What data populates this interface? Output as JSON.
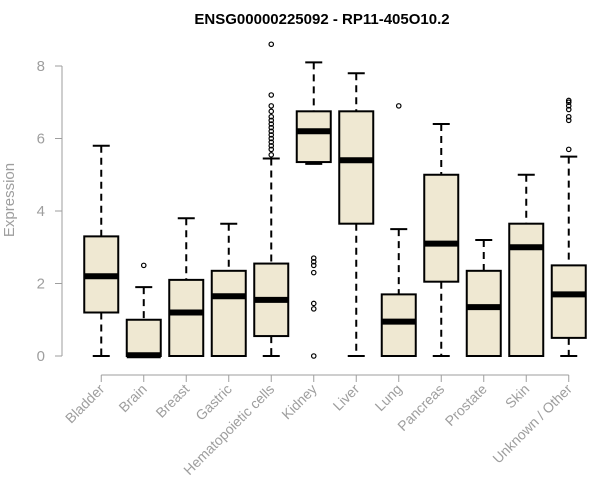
{
  "chart_data": {
    "type": "box",
    "title": "ENSG00000225092 - RP11-405O10.2",
    "ylabel": "Expression",
    "xlabel": "",
    "ylim": [
      0,
      8
    ],
    "yticks": [
      0,
      2,
      4,
      6,
      8
    ],
    "grid": false,
    "legend": "none",
    "box_fill": "#efe8d2",
    "box_stroke": "#000000",
    "axis_color": "#9e9e9e",
    "categories": [
      "Bladder",
      "Brain",
      "Breast",
      "Gastric",
      "Hematopoietic cells",
      "Kidney",
      "Liver",
      "Lung",
      "Pancreas",
      "Prostate",
      "Skin",
      "Unknown / Other"
    ],
    "boxes": [
      {
        "category": "Bladder",
        "whisker_low": 0,
        "q1": 1.2,
        "median": 2.2,
        "q3": 3.3,
        "whisker_high": 5.8,
        "outliers": []
      },
      {
        "category": "Brain",
        "whisker_low": 0,
        "q1": 0,
        "median": 0.02,
        "q3": 1.0,
        "whisker_high": 1.9,
        "outliers": [
          2.5
        ]
      },
      {
        "category": "Breast",
        "whisker_low": 0,
        "q1": 0,
        "median": 1.2,
        "q3": 2.1,
        "whisker_high": 3.8,
        "outliers": []
      },
      {
        "category": "Gastric",
        "whisker_low": 0,
        "q1": 0,
        "median": 1.65,
        "q3": 2.35,
        "whisker_high": 3.65,
        "outliers": []
      },
      {
        "category": "Hematopoietic cells",
        "whisker_low": 0,
        "q1": 0.55,
        "median": 1.55,
        "q3": 2.55,
        "whisker_high": 5.45,
        "outliers": [
          5.55,
          5.7,
          5.8,
          5.9,
          6.0,
          6.1,
          6.2,
          6.3,
          6.4,
          6.5,
          6.6,
          6.75,
          6.9,
          7.2,
          8.6
        ]
      },
      {
        "category": "Kidney",
        "whisker_low": 5.3,
        "q1": 5.35,
        "median": 6.2,
        "q3": 6.75,
        "whisker_high": 8.1,
        "outliers": [
          0,
          1.3,
          1.45,
          2.3,
          2.5,
          2.6,
          2.7
        ]
      },
      {
        "category": "Liver",
        "whisker_low": 0,
        "q1": 3.65,
        "median": 5.4,
        "q3": 6.75,
        "whisker_high": 7.8,
        "outliers": []
      },
      {
        "category": "Lung",
        "whisker_low": 0,
        "q1": 0,
        "median": 0.95,
        "q3": 1.7,
        "whisker_high": 3.5,
        "outliers": [
          6.9
        ]
      },
      {
        "category": "Pancreas",
        "whisker_low": 0,
        "q1": 2.05,
        "median": 3.1,
        "q3": 5.0,
        "whisker_high": 6.4,
        "outliers": []
      },
      {
        "category": "Prostate",
        "whisker_low": 0,
        "q1": 0,
        "median": 1.35,
        "q3": 2.35,
        "whisker_high": 3.2,
        "outliers": []
      },
      {
        "category": "Skin",
        "whisker_low": 0,
        "q1": 0,
        "median": 3.0,
        "q3": 3.65,
        "whisker_high": 5.0,
        "outliers": []
      },
      {
        "category": "Unknown / Other",
        "whisker_low": 0,
        "q1": 0.5,
        "median": 1.7,
        "q3": 2.5,
        "whisker_high": 5.5,
        "outliers": [
          5.7,
          6.5,
          6.6,
          6.8,
          6.9,
          7.0,
          7.05
        ]
      }
    ]
  }
}
